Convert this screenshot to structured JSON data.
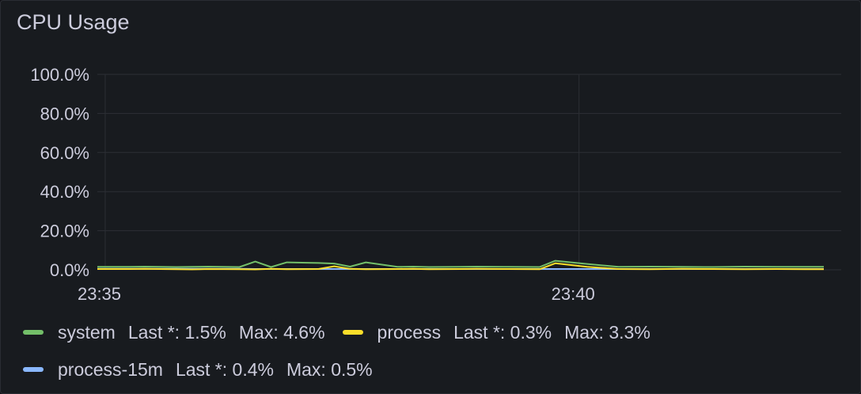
{
  "panel": {
    "title": "CPU Usage"
  },
  "colors": {
    "system": "#73bf69",
    "process": "#fade2a",
    "process-15m": "#8ab8ff",
    "grid": "#2c2f35"
  },
  "chart_data": {
    "type": "line",
    "title": "CPU Usage",
    "y_ticks": [
      "100.0%",
      "80.0%",
      "60.0%",
      "40.0%",
      "20.0%",
      "0.0%"
    ],
    "x_ticks": [
      "23:35",
      "23:40"
    ],
    "ylim": [
      0,
      100
    ],
    "grid": true,
    "legend_placement": "bottom",
    "x": [
      "23:34:55",
      "23:35:15",
      "23:35:25",
      "23:35:45",
      "23:35:55",
      "23:36:05",
      "23:36:25",
      "23:36:35",
      "23:36:45",
      "23:36:55",
      "23:37:15",
      "23:37:25",
      "23:37:35",
      "23:37:45",
      "23:38:05",
      "23:38:15",
      "23:38:25",
      "23:38:45",
      "23:38:55",
      "23:39:15",
      "23:39:35",
      "23:39:45",
      "23:40:05",
      "23:40:25",
      "23:40:45",
      "23:41:05",
      "23:41:25",
      "23:41:45",
      "23:42:05",
      "23:42:25",
      "23:42:35"
    ],
    "series": [
      {
        "name": "system",
        "values": [
          1.5,
          1.5,
          1.6,
          1.4,
          1.5,
          1.6,
          1.4,
          4.2,
          1.4,
          3.8,
          3.5,
          3.2,
          1.6,
          3.8,
          1.5,
          1.6,
          1.4,
          1.5,
          1.6,
          1.5,
          1.4,
          4.6,
          3.0,
          1.5,
          1.6,
          1.5,
          1.4,
          1.6,
          1.5,
          1.5,
          1.5
        ]
      },
      {
        "name": "process",
        "values": [
          0.4,
          0.4,
          0.5,
          0.3,
          0.2,
          0.4,
          0.3,
          0.2,
          0.5,
          0.3,
          0.4,
          1.8,
          0.5,
          0.3,
          0.4,
          0.5,
          0.3,
          0.4,
          0.5,
          0.4,
          0.3,
          3.3,
          1.5,
          0.4,
          0.3,
          0.5,
          0.4,
          0.3,
          0.4,
          0.3,
          0.3
        ]
      },
      {
        "name": "process-15m",
        "values": [
          0.5,
          0.5,
          0.5,
          0.5,
          0.5,
          0.5,
          0.5,
          0.4,
          0.4,
          0.4,
          0.4,
          0.4,
          0.4,
          0.4,
          0.4,
          0.4,
          0.4,
          0.4,
          0.4,
          0.4,
          0.4,
          0.4,
          0.4,
          0.4,
          0.4,
          0.4,
          0.4,
          0.4,
          0.4,
          0.4,
          0.4
        ]
      }
    ]
  },
  "legend": {
    "items": [
      {
        "name": "system",
        "last": "Last *: 1.5%",
        "max": "Max: 4.6%"
      },
      {
        "name": "process",
        "last": "Last *: 0.3%",
        "max": "Max: 3.3%"
      },
      {
        "name": "process-15m",
        "last": "Last *: 0.4%",
        "max": "Max: 0.5%"
      }
    ]
  }
}
